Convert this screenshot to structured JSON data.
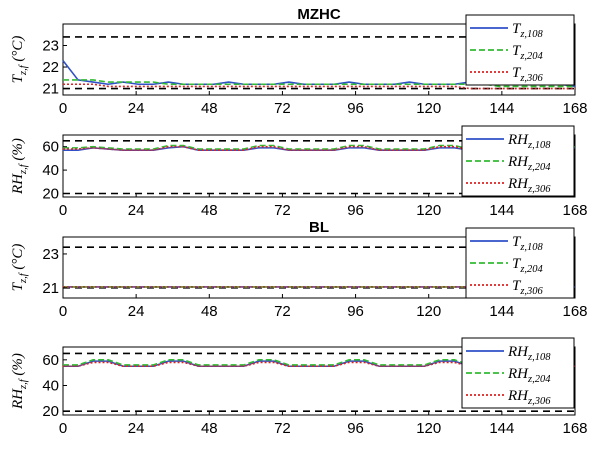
{
  "figure": {
    "titles": [
      "MZHC",
      "BL"
    ]
  },
  "colors": {
    "series": [
      "#3050c8",
      "#33bb33",
      "#dd2222"
    ],
    "bound": "#000000",
    "axis": "#000000"
  },
  "chart_data": [
    {
      "type": "line",
      "title": "MZHC",
      "ylabel": "T_{z,f} (°C)",
      "xlim": [
        0,
        168
      ],
      "ylim": [
        20.7,
        24.0
      ],
      "xticks": [
        0,
        24,
        48,
        72,
        96,
        120,
        144,
        168
      ],
      "yticks": [
        21,
        22,
        23
      ],
      "grid": false,
      "legend": "top-right",
      "bounds": [
        21.0,
        23.4
      ],
      "series": [
        {
          "name": "T_{z,108}",
          "values": [
            22.3,
            21.4,
            21.3,
            21.2,
            21.3,
            21.2,
            21.2,
            21.3,
            21.2,
            21.2,
            21.2,
            21.3,
            21.2,
            21.2,
            21.2,
            21.3,
            21.2,
            21.2,
            21.2,
            21.3,
            21.2,
            21.2,
            21.2,
            21.3,
            21.2,
            21.2,
            21.2,
            21.3,
            21.2,
            21.2,
            21.2,
            21.2,
            21.2,
            21.2,
            21.1
          ]
        },
        {
          "name": "T_{z,204}",
          "values": [
            21.4,
            21.4,
            21.4,
            21.3,
            21.3,
            21.3,
            21.3,
            21.2,
            21.2,
            21.2,
            21.2,
            21.2,
            21.2,
            21.2,
            21.2,
            21.2,
            21.2,
            21.2,
            21.2,
            21.2,
            21.2,
            21.2,
            21.2,
            21.2,
            21.2,
            21.2,
            21.2,
            21.2,
            21.2,
            21.1,
            21.1,
            21.1,
            21.1,
            21.1,
            21.1
          ]
        },
        {
          "name": "T_{z,306}",
          "values": [
            21.2,
            21.2,
            21.2,
            21.1,
            21.1,
            21.1,
            21.1,
            21.1,
            21.1,
            21.1,
            21.1,
            21.1,
            21.1,
            21.1,
            21.1,
            21.1,
            21.1,
            21.1,
            21.1,
            21.1,
            21.1,
            21.1,
            21.1,
            21.1,
            21.1,
            21.1,
            21.1,
            21.0,
            21.0,
            21.0,
            21.0,
            21.0,
            21.0,
            21.0,
            21.0
          ]
        }
      ]
    },
    {
      "type": "line",
      "title": "",
      "ylabel": "RH_{z,f} (%)",
      "xlim": [
        0,
        168
      ],
      "ylim": [
        17,
        70
      ],
      "xticks": [
        0,
        24,
        48,
        72,
        96,
        120,
        144,
        168
      ],
      "yticks": [
        20,
        40,
        60
      ],
      "grid": false,
      "legend": "top-right",
      "bounds": [
        20,
        65
      ],
      "series": [
        {
          "name": "RH_{z,108}",
          "values": [
            57,
            57,
            59,
            58,
            57,
            57,
            57,
            59,
            60,
            57,
            57,
            57,
            57,
            59,
            59,
            57,
            57,
            57,
            57,
            59,
            59,
            57,
            57,
            57,
            57,
            59,
            59,
            57,
            58,
            58,
            58,
            58,
            58,
            58,
            59
          ]
        },
        {
          "name": "RH_{z,204}",
          "values": [
            59,
            59,
            60,
            59,
            58,
            58,
            58,
            61,
            61,
            58,
            58,
            58,
            58,
            61,
            61,
            58,
            58,
            58,
            58,
            61,
            61,
            58,
            58,
            58,
            58,
            61,
            61,
            58,
            59,
            59,
            59,
            59,
            59,
            59,
            60
          ]
        },
        {
          "name": "RH_{z,306}",
          "values": [
            58,
            58,
            59,
            58,
            57,
            57,
            57,
            60,
            60,
            57,
            57,
            57,
            57,
            60,
            60,
            57,
            57,
            57,
            57,
            60,
            60,
            57,
            57,
            57,
            57,
            60,
            60,
            57,
            58,
            58,
            58,
            58,
            58,
            58,
            59
          ]
        }
      ]
    },
    {
      "type": "line",
      "title": "BL",
      "ylabel": "T_{z,f} (°C)",
      "xlim": [
        0,
        168
      ],
      "ylim": [
        20.4,
        24.0
      ],
      "xticks": [
        0,
        24,
        48,
        72,
        96,
        120,
        144,
        168
      ],
      "yticks": [
        21,
        23
      ],
      "grid": false,
      "legend": "top-right",
      "bounds": [
        21.0,
        23.4
      ],
      "series": [
        {
          "name": "T_{z,108}",
          "values": [
            21.05,
            21.05,
            21.05,
            21.05,
            21.05,
            21.05,
            21.05,
            21.05,
            21.05,
            21.05,
            21.05,
            21.05,
            21.05,
            21.05,
            21.05,
            21.05,
            21.05,
            21.05,
            21.05,
            21.05,
            21.05,
            21.05,
            21.05,
            21.05,
            21.05,
            21.05,
            21.05,
            21.05,
            21.05,
            21.05,
            21.05,
            21.05,
            21.05,
            21.05,
            21.05
          ]
        },
        {
          "name": "T_{z,204}",
          "values": [
            21.05,
            21.05,
            21.05,
            21.05,
            21.05,
            21.05,
            21.05,
            21.05,
            21.05,
            21.05,
            21.05,
            21.05,
            21.05,
            21.05,
            21.05,
            21.05,
            21.05,
            21.05,
            21.05,
            21.05,
            21.05,
            21.05,
            21.05,
            21.05,
            21.05,
            21.05,
            21.05,
            21.05,
            21.05,
            21.05,
            21.05,
            21.05,
            21.05,
            21.05,
            21.05
          ]
        },
        {
          "name": "T_{z,306}",
          "values": [
            21.05,
            21.05,
            21.05,
            21.05,
            21.05,
            21.05,
            21.05,
            21.05,
            21.05,
            21.05,
            21.05,
            21.05,
            21.05,
            21.05,
            21.05,
            21.05,
            21.05,
            21.05,
            21.05,
            21.05,
            21.05,
            21.05,
            21.05,
            21.05,
            21.05,
            21.05,
            21.05,
            21.05,
            21.05,
            21.05,
            21.05,
            21.05,
            21.05,
            21.05,
            21.05
          ]
        }
      ]
    },
    {
      "type": "line",
      "title": "",
      "ylabel": "RH_{z,f} (%)",
      "xlim": [
        0,
        168
      ],
      "ylim": [
        17,
        70
      ],
      "xticks": [
        0,
        24,
        48,
        72,
        96,
        120,
        144,
        168
      ],
      "yticks": [
        20,
        40,
        60
      ],
      "grid": false,
      "legend": "top-right",
      "bounds": [
        20,
        65
      ],
      "series": [
        {
          "name": "RH_{z,108}",
          "values": [
            55,
            55,
            59,
            59,
            55,
            55,
            55,
            59,
            59,
            55,
            55,
            55,
            55,
            59,
            59,
            55,
            55,
            55,
            55,
            59,
            59,
            55,
            55,
            55,
            55,
            59,
            59,
            55,
            55,
            55,
            55,
            55,
            55,
            55,
            55
          ]
        },
        {
          "name": "RH_{z,204}",
          "values": [
            56,
            56,
            60,
            60,
            56,
            56,
            56,
            60,
            60,
            56,
            56,
            56,
            56,
            60,
            60,
            56,
            56,
            56,
            56,
            60,
            60,
            56,
            56,
            56,
            56,
            60,
            60,
            56,
            56,
            56,
            56,
            56,
            56,
            56,
            56
          ]
        },
        {
          "name": "RH_{z,306}",
          "values": [
            55,
            55,
            58,
            58,
            55,
            55,
            55,
            58,
            58,
            55,
            55,
            55,
            55,
            58,
            58,
            55,
            55,
            55,
            55,
            58,
            58,
            55,
            55,
            55,
            55,
            58,
            58,
            55,
            55,
            55,
            55,
            55,
            55,
            55,
            55
          ]
        }
      ]
    }
  ]
}
